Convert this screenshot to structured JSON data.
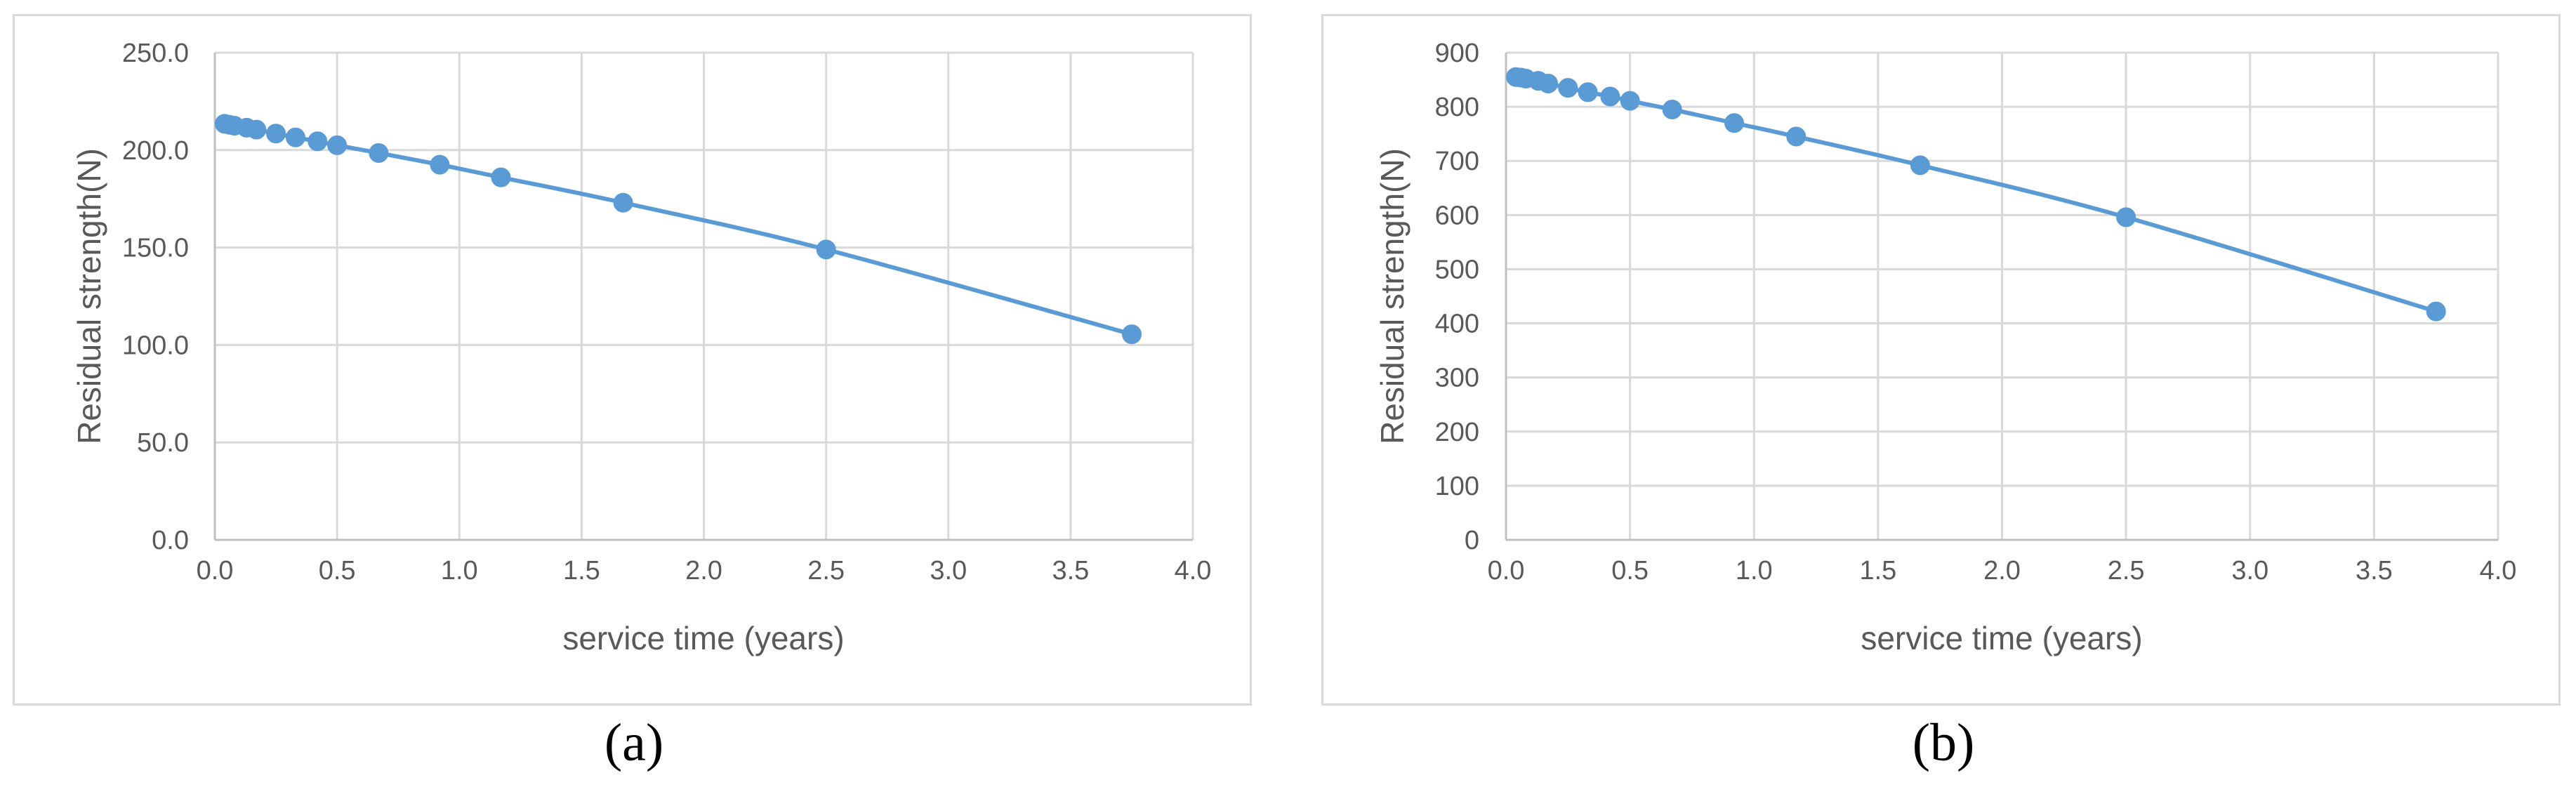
{
  "series_color": "#5b9bd5",
  "grid_color": "#d9d9d9",
  "chart_data": [
    {
      "panel_label": "(a)",
      "type": "scatter",
      "smooth_line": true,
      "xlabel": "service time (years)",
      "ylabel": "Residual strength(N)",
      "xlim": [
        0,
        4.0
      ],
      "ylim": [
        0,
        250.0
      ],
      "xticks": [
        "0.0",
        "0.5",
        "1.0",
        "1.5",
        "2.0",
        "2.5",
        "3.0",
        "3.5",
        "4.0"
      ],
      "yticks": [
        "0.0",
        "50.0",
        "100.0",
        "150.0",
        "200.0",
        "250.0"
      ],
      "grid": true,
      "legend": "none",
      "series": [
        {
          "x": [
            0.04,
            0.06,
            0.08,
            0.13,
            0.17,
            0.25,
            0.33,
            0.42,
            0.5,
            0.67,
            0.92,
            1.17,
            1.67,
            2.5,
            3.75
          ],
          "y": [
            213.5,
            213.0,
            212.5,
            211.5,
            210.5,
            208.5,
            206.5,
            204.5,
            202.5,
            198.5,
            192.5,
            186.0,
            173.0,
            149.0,
            105.5
          ]
        }
      ]
    },
    {
      "panel_label": "(b)",
      "type": "scatter",
      "smooth_line": true,
      "xlabel": "service time (years)",
      "ylabel": "Residual strength(N)",
      "xlim": [
        0,
        4.0
      ],
      "ylim": [
        0,
        900
      ],
      "xticks": [
        "0.0",
        "0.5",
        "1.0",
        "1.5",
        "2.0",
        "2.5",
        "3.0",
        "3.5",
        "4.0"
      ],
      "yticks": [
        "0",
        "100",
        "200",
        "300",
        "400",
        "500",
        "600",
        "700",
        "800",
        "900"
      ],
      "grid": true,
      "legend": "none",
      "series": [
        {
          "x": [
            0.04,
            0.06,
            0.08,
            0.13,
            0.17,
            0.25,
            0.33,
            0.42,
            0.5,
            0.67,
            0.92,
            1.17,
            1.67,
            2.5,
            3.75
          ],
          "y": [
            855,
            854,
            852,
            848,
            843,
            835,
            827,
            819,
            811,
            795,
            770,
            745,
            692,
            596,
            422
          ]
        }
      ]
    }
  ]
}
